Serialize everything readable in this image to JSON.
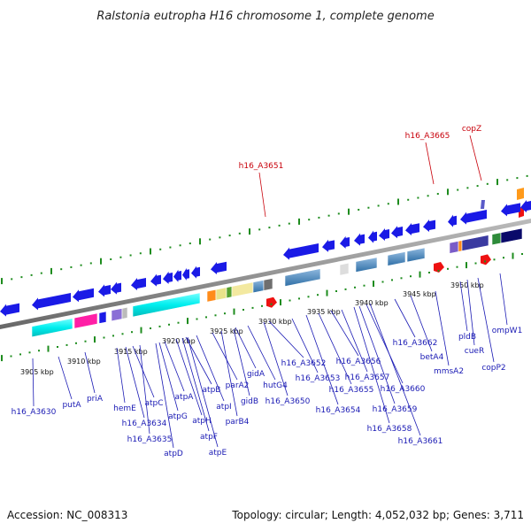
{
  "title": "Ralstonia eutropha H16 chromosome 1, complete genome",
  "footer": {
    "accession": "Accession: NC_008313",
    "summary": "Topology: circular; Length: 4,052,032 bp; Genes: 3,711"
  },
  "kbp_labels": [
    "3905 kbp",
    "3910 kbp",
    "3915 kbp",
    "3920 kbp",
    "3925 kbp",
    "3930 kbp",
    "3935 kbp",
    "3940 kbp",
    "3945 kbp",
    "3950 kbp"
  ],
  "highlighted_genes": [
    "h16_A3651",
    "h16_A3665",
    "copZ"
  ],
  "gene_labels": [
    "h16_A3630",
    "putA",
    "priA",
    "hemE",
    "atpC",
    "h16_A3634",
    "h16_A3635",
    "atpD",
    "atpG",
    "atpA",
    "atpH",
    "atpF",
    "atpE",
    "atpB",
    "atpI",
    "parA2",
    "parB4",
    "gidB",
    "gidA",
    "hutG4",
    "h16_A3650",
    "h16_A3652",
    "h16_A3653",
    "h16_A3654",
    "h16_A3655",
    "h16_A3656",
    "h16_A3657",
    "h16_A3658",
    "h16_A3659",
    "h16_A3660",
    "h16_A3661",
    "h16_A3662",
    "betA4",
    "mmsA2",
    "pldB",
    "cueR",
    "copP2",
    "ompW1"
  ],
  "colors": {
    "label_blue": "#1a1ab4",
    "highlight_red": "#c8000a",
    "gene_blue": "#1a1ae6",
    "backbone_gray": "#8c8c8c",
    "tick_green": "#1e8c1e"
  }
}
